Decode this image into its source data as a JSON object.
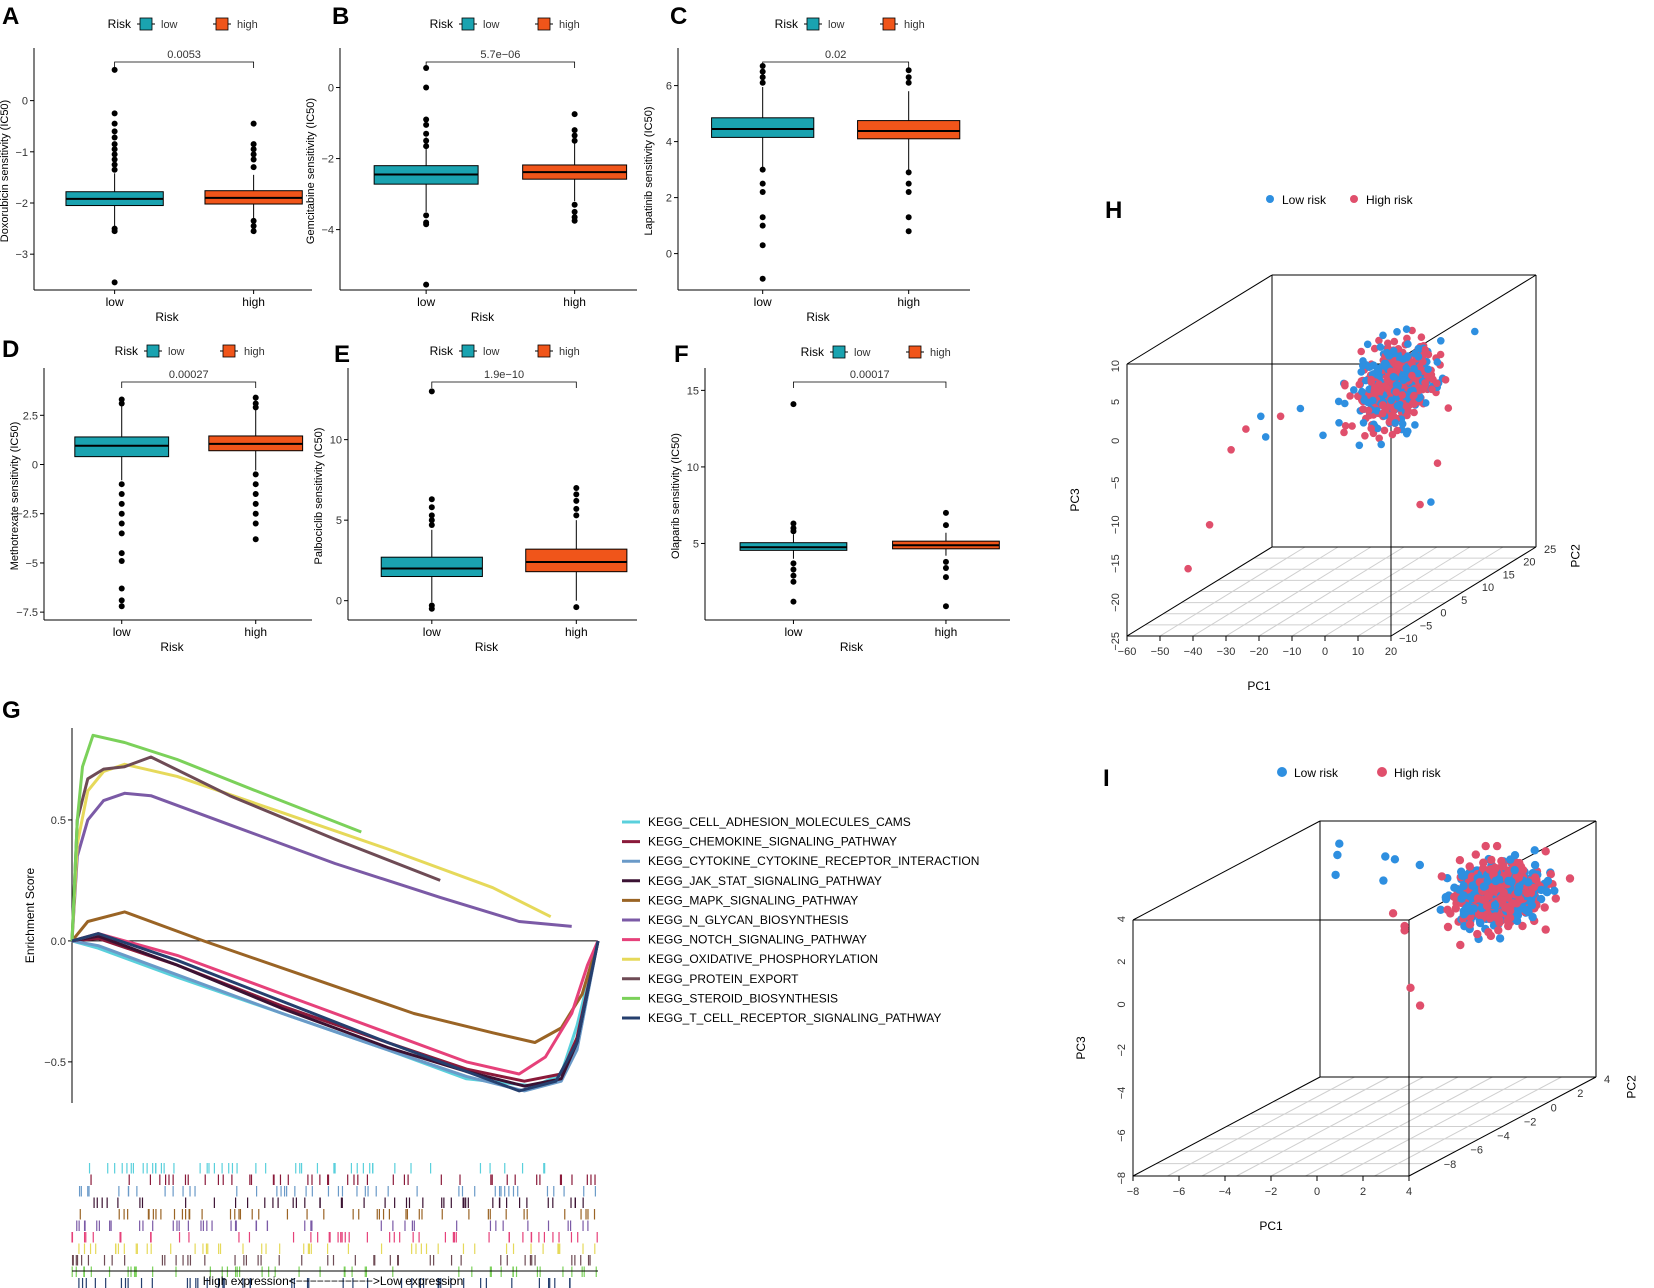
{
  "colors": {
    "low": "#1aa3b0",
    "high": "#f0551a",
    "pca_low": "#2e8fe0",
    "pca_high": "#e04f6c"
  },
  "chart_data": [
    {
      "panel": "A",
      "type": "box",
      "title": "",
      "legend_title": "Risk",
      "legend": [
        "low",
        "high"
      ],
      "categories": [
        "low",
        "high"
      ],
      "xlabel": "Risk",
      "ylabel": "Doxorubicin sensitivity (IC50)",
      "ylim": [
        -3.7,
        0.95
      ],
      "yticks": [
        0,
        -1,
        -2,
        -3
      ],
      "pvalue": "0.0053",
      "boxes": [
        {
          "min": -2.45,
          "q1": -2.05,
          "median": -1.92,
          "q3": -1.78,
          "max": -1.42,
          "outliers": [
            0.6,
            -0.25,
            -0.45,
            -0.6,
            -0.72,
            -0.85,
            -0.95,
            -1.05,
            -1.15,
            -1.25,
            -1.35,
            -2.5,
            -2.55,
            -3.55
          ]
        },
        {
          "min": -2.3,
          "q1": -2.02,
          "median": -1.9,
          "q3": -1.76,
          "max": -1.45,
          "outliers": [
            -0.45,
            -0.85,
            -0.95,
            -1.05,
            -1.15,
            -1.3,
            -2.35,
            -2.45,
            -2.55
          ]
        }
      ]
    },
    {
      "panel": "B",
      "type": "box",
      "title": "",
      "legend_title": "Risk",
      "legend": [
        "low",
        "high"
      ],
      "categories": [
        "low",
        "high"
      ],
      "xlabel": "Risk",
      "ylabel": "Gemcitabine sensitivity (IC50)",
      "ylim": [
        -5.7,
        1.0
      ],
      "yticks": [
        0,
        -2,
        -4
      ],
      "pvalue": "5.7e−06",
      "boxes": [
        {
          "min": -3.5,
          "q1": -2.72,
          "median": -2.45,
          "q3": -2.2,
          "max": -1.4,
          "outliers": [
            0.55,
            0.0,
            -0.9,
            -1.05,
            -1.3,
            -1.5,
            -1.65,
            -3.6,
            -3.8,
            -3.85,
            -5.55
          ]
        },
        {
          "min": -3.2,
          "q1": -2.58,
          "median": -2.38,
          "q3": -2.18,
          "max": -1.5,
          "outliers": [
            -0.75,
            -1.2,
            -1.35,
            -1.5,
            -3.3,
            -3.5,
            -3.65,
            -3.75
          ]
        }
      ]
    },
    {
      "panel": "C",
      "type": "box",
      "title": "",
      "legend_title": "Risk",
      "legend": [
        "low",
        "high"
      ],
      "categories": [
        "low",
        "high"
      ],
      "xlabel": "Risk",
      "ylabel": "Lapatinib sensitivity (IC50)",
      "ylim": [
        -1.3,
        7.2
      ],
      "yticks": [
        0,
        2,
        4,
        6
      ],
      "pvalue": "0.02",
      "boxes": [
        {
          "min": 3.0,
          "q1": 4.15,
          "median": 4.45,
          "q3": 4.85,
          "max": 5.95,
          "outliers": [
            6.7,
            6.5,
            6.3,
            6.1,
            3.0,
            2.5,
            2.2,
            1.3,
            1.0,
            0.3,
            -0.9
          ]
        },
        {
          "min": 3.0,
          "q1": 4.1,
          "median": 4.38,
          "q3": 4.75,
          "max": 5.8,
          "outliers": [
            6.55,
            6.3,
            6.1,
            2.9,
            2.5,
            2.2,
            1.3,
            0.8
          ]
        }
      ]
    },
    {
      "panel": "D",
      "type": "box",
      "title": "",
      "legend_title": "Risk",
      "legend": [
        "low",
        "high"
      ],
      "categories": [
        "low",
        "high"
      ],
      "xlabel": "Risk",
      "ylabel": "Methotrexate sensitivity (IC50)",
      "ylim": [
        -7.9,
        4.7
      ],
      "yticks": [
        2.5,
        0.0,
        -2.5,
        -5.0,
        -7.5
      ],
      "pvalue": "0.00027",
      "boxes": [
        {
          "min": -0.8,
          "q1": 0.4,
          "median": 0.95,
          "q3": 1.4,
          "max": 3.0,
          "outliers": [
            3.3,
            3.1,
            -1.0,
            -1.5,
            -2.0,
            -2.5,
            -3.0,
            -3.5,
            -4.5,
            -4.9,
            -6.3,
            -6.9,
            -7.2
          ]
        },
        {
          "min": -0.3,
          "q1": 0.7,
          "median": 1.05,
          "q3": 1.45,
          "max": 2.8,
          "outliers": [
            3.4,
            3.1,
            2.9,
            -0.5,
            -1.0,
            -1.5,
            -2.0,
            -2.5,
            -3.0,
            -3.8
          ]
        }
      ]
    },
    {
      "panel": "E",
      "type": "box",
      "title": "",
      "legend_title": "Risk",
      "legend": [
        "low",
        "high"
      ],
      "categories": [
        "low",
        "high"
      ],
      "xlabel": "Risk",
      "ylabel": "Palbociclib sensitivity (IC50)",
      "ylim": [
        -1.2,
        14.2
      ],
      "yticks": [
        0,
        5,
        10
      ],
      "pvalue": "1.9e−10",
      "boxes": [
        {
          "min": -0.1,
          "q1": 1.5,
          "median": 2.0,
          "q3": 2.7,
          "max": 4.4,
          "outliers": [
            13.0,
            6.3,
            5.8,
            5.3,
            5.0,
            4.7,
            -0.3,
            -0.5
          ]
        },
        {
          "min": 0.0,
          "q1": 1.8,
          "median": 2.4,
          "q3": 3.2,
          "max": 5.0,
          "outliers": [
            7.0,
            6.6,
            6.2,
            5.7,
            5.3,
            -0.4
          ]
        }
      ]
    },
    {
      "panel": "F",
      "type": "box",
      "title": "",
      "legend_title": "Risk",
      "legend": [
        "low",
        "high"
      ],
      "categories": [
        "low",
        "high"
      ],
      "xlabel": "Risk",
      "ylabel": "Olaparib sensitivity (IC50)",
      "ylim": [
        0.0,
        16.2
      ],
      "yticks": [
        5,
        10,
        15
      ],
      "pvalue": "0.00017",
      "boxes": [
        {
          "min": 4.0,
          "q1": 4.55,
          "median": 4.75,
          "q3": 5.05,
          "max": 5.6,
          "outliers": [
            14.1,
            6.3,
            6.0,
            5.8,
            3.7,
            3.3,
            2.9,
            2.5,
            1.2
          ]
        },
        {
          "min": 4.2,
          "q1": 4.65,
          "median": 4.88,
          "q3": 5.15,
          "max": 5.7,
          "outliers": [
            7.0,
            6.2,
            3.8,
            3.4,
            2.8,
            0.9
          ]
        }
      ]
    },
    {
      "panel": "G",
      "type": "line",
      "title": "",
      "xlabel": "",
      "ylabel": "Enrichment Score",
      "ylim": [
        -0.67,
        0.88
      ],
      "yticks": [
        0.5,
        0.0,
        -0.5
      ],
      "x_caption": "High expression<−−−−−−−−−−−>Low expression",
      "series": [
        {
          "name": "KEGG_CELL_ADHESION_MOLECULES_CAMS",
          "color": "#5ad0dc",
          "x": [
            0,
            0.05,
            0.2,
            0.4,
            0.6,
            0.75,
            0.88,
            0.93,
            0.96,
            1.0
          ],
          "y": [
            0,
            -0.03,
            -0.15,
            -0.3,
            -0.45,
            -0.57,
            -0.6,
            -0.55,
            -0.35,
            0
          ]
        },
        {
          "name": "KEGG_CHEMOKINE_SIGNALING_PATHWAY",
          "color": "#8a1a3a",
          "x": [
            0,
            0.05,
            0.2,
            0.4,
            0.6,
            0.75,
            0.86,
            0.93,
            0.96,
            1.0
          ],
          "y": [
            0,
            0.01,
            -0.1,
            -0.27,
            -0.42,
            -0.53,
            -0.58,
            -0.55,
            -0.4,
            0
          ]
        },
        {
          "name": "KEGG_CYTOKINE_CYTOKINE_RECEPTOR_INTERACTION",
          "color": "#6a9ac8",
          "x": [
            0,
            0.05,
            0.2,
            0.4,
            0.6,
            0.75,
            0.86,
            0.93,
            0.96,
            1.0
          ],
          "y": [
            0,
            -0.02,
            -0.14,
            -0.3,
            -0.45,
            -0.56,
            -0.62,
            -0.58,
            -0.45,
            0
          ]
        },
        {
          "name": "KEGG_JAK_STAT_SIGNALING_PATHWAY",
          "color": "#3b1233",
          "x": [
            0,
            0.05,
            0.2,
            0.4,
            0.6,
            0.75,
            0.86,
            0.93,
            0.96,
            1.0
          ],
          "y": [
            0,
            0.02,
            -0.1,
            -0.28,
            -0.44,
            -0.54,
            -0.6,
            -0.57,
            -0.42,
            0
          ]
        },
        {
          "name": "KEGG_MAPK_SIGNALING_PATHWAY",
          "color": "#9a6425",
          "x": [
            0,
            0.03,
            0.1,
            0.25,
            0.45,
            0.65,
            0.8,
            0.88,
            0.93,
            0.97,
            1.0
          ],
          "y": [
            0,
            0.08,
            0.12,
            0.0,
            -0.15,
            -0.3,
            -0.38,
            -0.42,
            -0.36,
            -0.22,
            0
          ]
        },
        {
          "name": "KEGG_N_GLYCAN_BIOSYNTHESIS",
          "color": "#7b5aa6",
          "x": [
            0,
            0.01,
            0.03,
            0.06,
            0.1,
            0.15,
            0.3,
            0.5,
            0.7,
            0.85,
            0.95
          ],
          "y": [
            0,
            0.35,
            0.5,
            0.58,
            0.61,
            0.6,
            0.48,
            0.32,
            0.18,
            0.08,
            0.06
          ]
        },
        {
          "name": "KEGG_NOTCH_SIGNALING_PATHWAY",
          "color": "#e6417a",
          "x": [
            0,
            0.05,
            0.2,
            0.4,
            0.6,
            0.75,
            0.85,
            0.9,
            0.95,
            0.98,
            1.0
          ],
          "y": [
            0,
            0.03,
            -0.06,
            -0.22,
            -0.38,
            -0.5,
            -0.55,
            -0.48,
            -0.3,
            -0.1,
            0
          ]
        },
        {
          "name": "KEGG_OXIDATIVE_PHOSPHORYLATION",
          "color": "#e6d95a",
          "x": [
            0,
            0.01,
            0.03,
            0.06,
            0.1,
            0.2,
            0.4,
            0.6,
            0.8,
            0.91
          ],
          "y": [
            0,
            0.4,
            0.62,
            0.7,
            0.73,
            0.68,
            0.53,
            0.38,
            0.22,
            0.1
          ]
        },
        {
          "name": "KEGG_PROTEIN_EXPORT",
          "color": "#6e4b55",
          "x": [
            0,
            0.01,
            0.03,
            0.06,
            0.1,
            0.15,
            0.3,
            0.5,
            0.7
          ],
          "y": [
            0,
            0.5,
            0.67,
            0.71,
            0.72,
            0.76,
            0.6,
            0.42,
            0.25
          ]
        },
        {
          "name": "KEGG_STEROID_BIOSYNTHESIS",
          "color": "#7bd15a",
          "x": [
            0,
            0.01,
            0.02,
            0.04,
            0.1,
            0.2,
            0.35,
            0.55
          ],
          "y": [
            0,
            0.5,
            0.72,
            0.85,
            0.82,
            0.75,
            0.62,
            0.45
          ]
        },
        {
          "name": "KEGG_T_CELL_RECEPTOR_SIGNALING_PATHWAY",
          "color": "#253f6e",
          "x": [
            0,
            0.05,
            0.2,
            0.4,
            0.6,
            0.75,
            0.85,
            0.92,
            0.96,
            1.0
          ],
          "y": [
            0,
            0.03,
            -0.08,
            -0.25,
            -0.42,
            -0.54,
            -0.62,
            -0.58,
            -0.42,
            0
          ]
        }
      ]
    },
    {
      "panel": "H",
      "type": "scatter3d",
      "title": "",
      "legend": [
        "Low risk",
        "High risk"
      ],
      "xlabel": "PC1",
      "ylabel": "PC2",
      "zlabel": "PC3",
      "xlim": [
        -60,
        20
      ],
      "ylim": [
        -10,
        25
      ],
      "zlim": [
        -25,
        10
      ],
      "xticks": [
        -60,
        -50,
        -40,
        -30,
        -20,
        -10,
        0,
        10,
        20
      ],
      "yticks": [
        -10,
        -5,
        0,
        5,
        10,
        15,
        20,
        25
      ],
      "zticks": [
        10,
        5,
        0,
        -5,
        -10,
        -15,
        -20,
        -25
      ],
      "cluster": {
        "pc1_center": 2,
        "pc1_sd": 6,
        "pc2_center": 5,
        "pc2_sd": 5,
        "pc3_center": 2,
        "pc3_sd": 3.5,
        "n": 520
      },
      "outliers_low": [
        [
          -32,
          0,
          0
        ],
        [
          -28,
          -2,
          -2
        ],
        [
          -20,
          0,
          1
        ],
        [
          14,
          15,
          6
        ],
        [
          12,
          6,
          -13
        ]
      ],
      "outliers_high": [
        [
          -36,
          -4,
          -3
        ],
        [
          -40,
          -6,
          -12
        ],
        [
          -44,
          -8,
          -17
        ],
        [
          -26,
          0,
          0
        ],
        [
          -34,
          -2,
          -1
        ],
        [
          10,
          5,
          -13
        ],
        [
          14,
          6,
          -8
        ]
      ]
    },
    {
      "panel": "I",
      "type": "scatter3d",
      "title": "",
      "legend": [
        "Low risk",
        "High risk"
      ],
      "xlabel": "PC1",
      "ylabel": "PC2",
      "zlabel": "PC3",
      "xlim": [
        -8,
        4
      ],
      "ylim": [
        -10,
        4
      ],
      "zlim": [
        -8,
        4
      ],
      "xticks": [
        -8,
        -6,
        -4,
        -2,
        0,
        2,
        4
      ],
      "yticks": [
        -8,
        -6,
        -4,
        -2,
        0,
        2,
        4
      ],
      "zticks": [
        4,
        2,
        0,
        -2,
        -4,
        -6,
        -8
      ],
      "cluster": {
        "pc1_center": 1.5,
        "pc1_sd": 1.2,
        "pc2_center": 1,
        "pc2_sd": 1.0,
        "pc3_center": 1.6,
        "pc3_sd": 1.0,
        "n": 700
      },
      "outliers_low": [
        [
          -6,
          2,
          3.6
        ],
        [
          -5.5,
          1,
          3.4
        ],
        [
          -5,
          0,
          2.8
        ],
        [
          -3,
          1,
          3.2
        ],
        [
          -4,
          2,
          3.0
        ],
        [
          -2.5,
          2,
          2.6
        ],
        [
          -3.5,
          1,
          2.2
        ]
      ],
      "outliers_high": [
        [
          -2.5,
          0,
          1.0
        ],
        [
          -2,
          0,
          0.4
        ],
        [
          0,
          -3,
          -1.5
        ],
        [
          1,
          -4,
          -2.0
        ],
        [
          -2,
          0,
          0.2
        ]
      ]
    }
  ]
}
